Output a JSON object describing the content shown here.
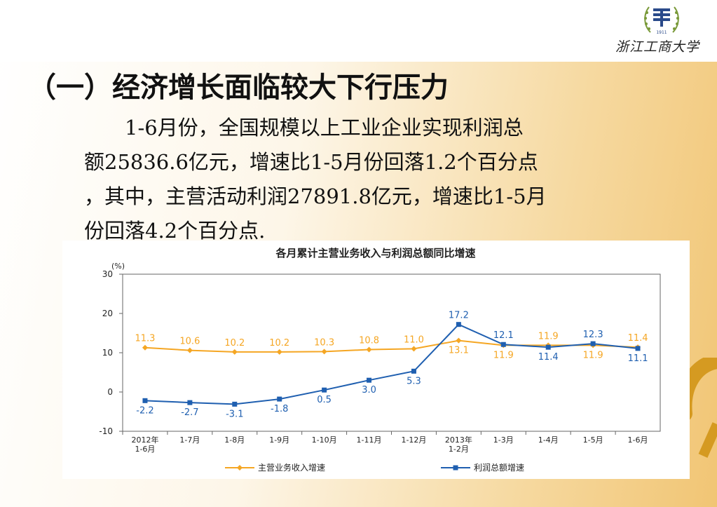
{
  "brand": {
    "university_name": "浙江工商大学",
    "emblem_year": "1911"
  },
  "slide": {
    "heading": "（一）经济增长面临较大下行压力",
    "paragraph_lines": [
      "1-6月份，全国规模以上工业企业实现利润总",
      "额25836.6亿元，增速比1-5月份回落1.2个百分点",
      "，其中，主营活动利润27891.8亿元，增速比1-5月",
      "份回落4.2个百分点."
    ]
  },
  "colors": {
    "revenue_series": "#f5a623",
    "profit_series": "#1f5fb0",
    "deco_accent": "#d59a21"
  },
  "chart_data": {
    "type": "line",
    "title": "各月累计主营业务收入与利润总额同比增速",
    "unit_label": "(%)",
    "ylim": [
      -10,
      30
    ],
    "yticks": [
      -10,
      0,
      10,
      20,
      30
    ],
    "grid": false,
    "legend_position": "bottom",
    "categories": [
      "2012年\n1-6月",
      "1-7月",
      "1-8月",
      "1-9月",
      "1-10月",
      "1-11月",
      "1-12月",
      "2013年\n1-2月",
      "1-3月",
      "1-4月",
      "1-5月",
      "1-6月"
    ],
    "series": [
      {
        "name": "主营业务收入增速",
        "color": "#f5a623",
        "marker": "diamond",
        "values": [
          11.3,
          10.6,
          10.2,
          10.2,
          10.3,
          10.8,
          11.0,
          13.1,
          11.9,
          11.9,
          11.9,
          11.4
        ]
      },
      {
        "name": "利润总额增速",
        "color": "#1f5fb0",
        "marker": "square",
        "values": [
          -2.2,
          -2.7,
          -3.1,
          -1.8,
          0.5,
          3.0,
          5.3,
          17.2,
          12.1,
          11.4,
          12.3,
          11.1
        ]
      }
    ]
  }
}
